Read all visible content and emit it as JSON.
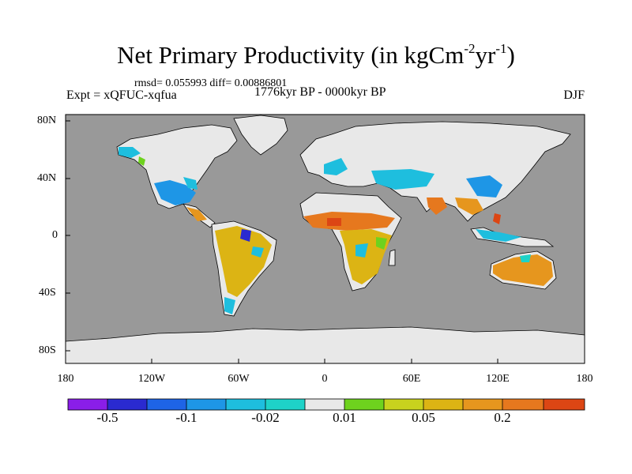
{
  "title": {
    "text": "Net Primary Productivity (in kgCm",
    "sup1": "-2",
    "middle": "yr",
    "sup2": "-1",
    "close": ")"
  },
  "stats": {
    "text": "rmsd= 0.055993  diff= 0.00886801"
  },
  "experiment": {
    "text": "Expt = xQFUC-xqfua"
  },
  "period": {
    "text": "1776kyr BP - 0000kyr BP"
  },
  "season": {
    "text": "DJF"
  },
  "axes": {
    "lat_labels": [
      "80N",
      "40N",
      "0",
      "40S",
      "80S"
    ],
    "lon_labels": [
      "180",
      "120W",
      "60W",
      "0",
      "60E",
      "120E",
      "180"
    ]
  },
  "colorbar": {
    "colors": [
      "#8a1ee8",
      "#2a2ad0",
      "#1e64e6",
      "#1e96e6",
      "#1ebede",
      "#1ed2c8",
      "#e8e8e8",
      "#6ed21e",
      "#c8d21e",
      "#dcb414",
      "#e6961e",
      "#e6781e",
      "#dc4614"
    ],
    "labels": [
      "-0.5",
      "-0.1",
      "-0.02",
      "0.01",
      "0.05",
      "0.2"
    ]
  },
  "map_colors": {
    "ocean": "#999999",
    "land_neutral": "#e8e8e8",
    "ice": "#e8e8e8"
  }
}
